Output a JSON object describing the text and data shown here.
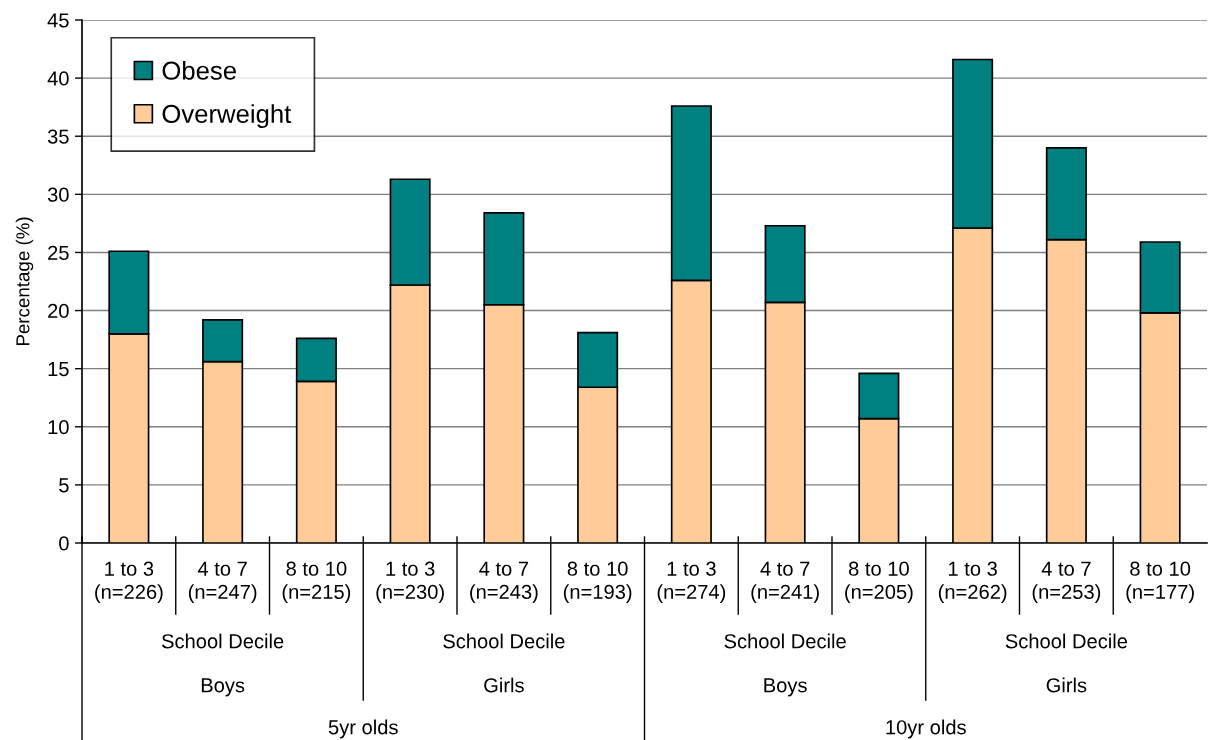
{
  "chart_data": {
    "type": "bar",
    "stacked": true,
    "ylabel": "Percentage (%)",
    "categories": [
      "1 to 3\n(n=226)",
      "4 to 7\n(n=247)",
      "8 to 10\n(n=215)",
      "1 to 3\n(n=230)",
      "4 to 7\n(n=243)",
      "8 to 10\n(n=193)",
      "1 to 3\n(n=274)",
      "4 to 7\n(n=241)",
      "8 to 10\n(n=205)",
      "1 to 3\n(n=262)",
      "4 to 7\n(n=253)",
      "8 to 10\n(n=177)"
    ],
    "series": [
      {
        "name": "Overweight",
        "color": "#ffcc99",
        "values": [
          18.0,
          15.6,
          13.9,
          22.2,
          20.5,
          13.4,
          22.6,
          20.7,
          10.7,
          27.1,
          26.1,
          19.8
        ]
      },
      {
        "name": "Obese",
        "color": "#008080",
        "values": [
          7.1,
          3.6,
          3.7,
          9.1,
          7.9,
          4.7,
          15.0,
          6.6,
          3.9,
          14.5,
          7.9,
          6.1
        ]
      }
    ],
    "ylim": [
      0,
      45
    ],
    "yticks": [
      0,
      5,
      10,
      15,
      20,
      25,
      30,
      35,
      40,
      45
    ],
    "grid": "y",
    "legend": "top left",
    "annotations": [
      "School Decile",
      "School Decile",
      "School Decile",
      "School Decile",
      "Boys",
      "Girls",
      "Boys",
      "Girls",
      "5yr olds",
      "10yr olds"
    ]
  }
}
